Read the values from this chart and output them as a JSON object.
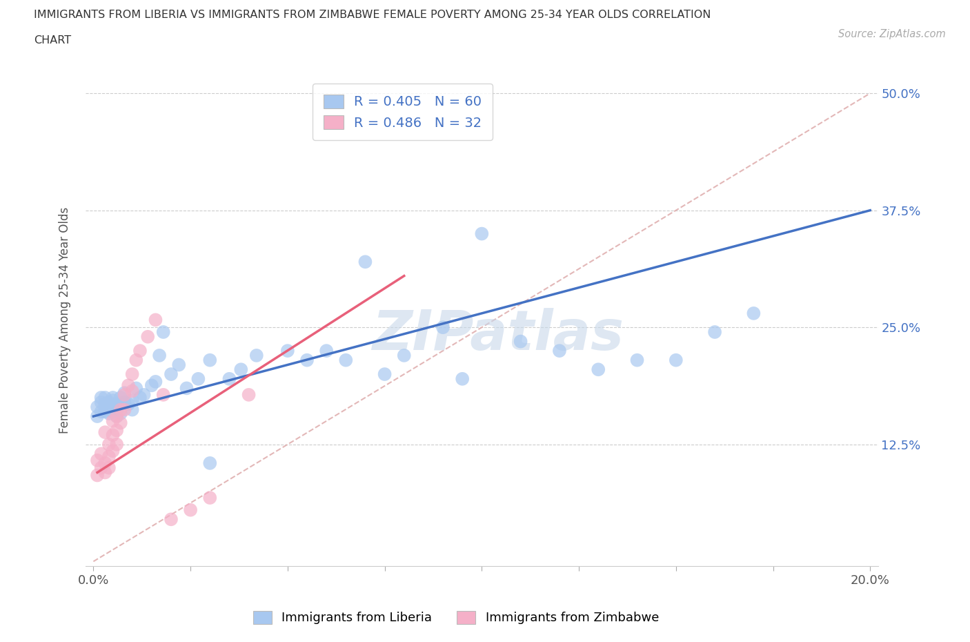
{
  "title_line1": "IMMIGRANTS FROM LIBERIA VS IMMIGRANTS FROM ZIMBABWE FEMALE POVERTY AMONG 25-34 YEAR OLDS CORRELATION",
  "title_line2": "CHART",
  "source": "Source: ZipAtlas.com",
  "ylabel": "Female Poverty Among 25-34 Year Olds",
  "xlim": [
    0.0,
    0.2
  ],
  "ylim": [
    0.0,
    0.5
  ],
  "liberia_color": "#a8c8f0",
  "zimbabwe_color": "#f5b0c8",
  "liberia_line_color": "#4472c4",
  "zimbabwe_line_color": "#e8607a",
  "diagonal_color": "#e0b0b0",
  "R_liberia": 0.405,
  "N_liberia": 60,
  "R_zimbabwe": 0.486,
  "N_zimbabwe": 32,
  "watermark": "ZIPatlas",
  "watermark_color": "#c8d8ea",
  "liberia_x": [
    0.001,
    0.001,
    0.002,
    0.002,
    0.002,
    0.003,
    0.003,
    0.003,
    0.003,
    0.004,
    0.004,
    0.004,
    0.005,
    0.005,
    0.005,
    0.005,
    0.006,
    0.006,
    0.006,
    0.007,
    0.007,
    0.007,
    0.008,
    0.008,
    0.009,
    0.01,
    0.01,
    0.011,
    0.012,
    0.013,
    0.015,
    0.016,
    0.017,
    0.018,
    0.02,
    0.022,
    0.024,
    0.027,
    0.03,
    0.035,
    0.038,
    0.042,
    0.05,
    0.055,
    0.06,
    0.065,
    0.07,
    0.075,
    0.08,
    0.09,
    0.095,
    0.1,
    0.11,
    0.12,
    0.13,
    0.14,
    0.15,
    0.16,
    0.17,
    0.03
  ],
  "liberia_y": [
    0.165,
    0.155,
    0.17,
    0.16,
    0.175,
    0.16,
    0.168,
    0.175,
    0.163,
    0.17,
    0.165,
    0.158,
    0.175,
    0.165,
    0.16,
    0.172,
    0.168,
    0.162,
    0.155,
    0.175,
    0.168,
    0.158,
    0.18,
    0.17,
    0.168,
    0.172,
    0.162,
    0.185,
    0.175,
    0.178,
    0.188,
    0.192,
    0.22,
    0.245,
    0.2,
    0.21,
    0.185,
    0.195,
    0.215,
    0.195,
    0.205,
    0.22,
    0.225,
    0.215,
    0.225,
    0.215,
    0.32,
    0.2,
    0.22,
    0.25,
    0.195,
    0.35,
    0.235,
    0.225,
    0.205,
    0.215,
    0.215,
    0.245,
    0.265,
    0.105
  ],
  "zimbabwe_x": [
    0.001,
    0.001,
    0.002,
    0.002,
    0.003,
    0.003,
    0.003,
    0.004,
    0.004,
    0.004,
    0.005,
    0.005,
    0.005,
    0.006,
    0.006,
    0.006,
    0.007,
    0.007,
    0.008,
    0.008,
    0.009,
    0.01,
    0.01,
    0.011,
    0.012,
    0.014,
    0.016,
    0.018,
    0.02,
    0.025,
    0.03,
    0.04
  ],
  "zimbabwe_y": [
    0.108,
    0.092,
    0.115,
    0.1,
    0.138,
    0.105,
    0.095,
    0.125,
    0.112,
    0.1,
    0.15,
    0.135,
    0.118,
    0.155,
    0.14,
    0.125,
    0.162,
    0.148,
    0.178,
    0.162,
    0.188,
    0.2,
    0.182,
    0.215,
    0.225,
    0.24,
    0.258,
    0.178,
    0.045,
    0.055,
    0.068,
    0.178
  ],
  "liberia_trend_x": [
    0.0,
    0.2
  ],
  "liberia_trend_y": [
    0.155,
    0.375
  ],
  "zimbabwe_trend_x": [
    0.001,
    0.08
  ],
  "zimbabwe_trend_y": [
    0.095,
    0.305
  ]
}
